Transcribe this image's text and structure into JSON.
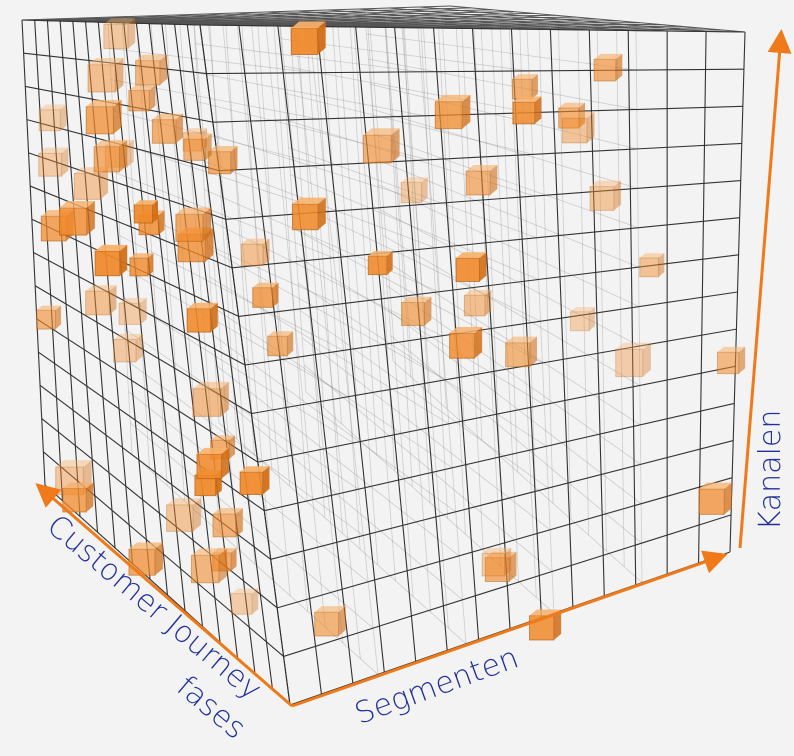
{
  "axis_labels": {
    "channels": "Kanalen",
    "segments": "Segmenten",
    "journey_stages": [
      "Customer Journey",
      "fases"
    ]
  }
}
